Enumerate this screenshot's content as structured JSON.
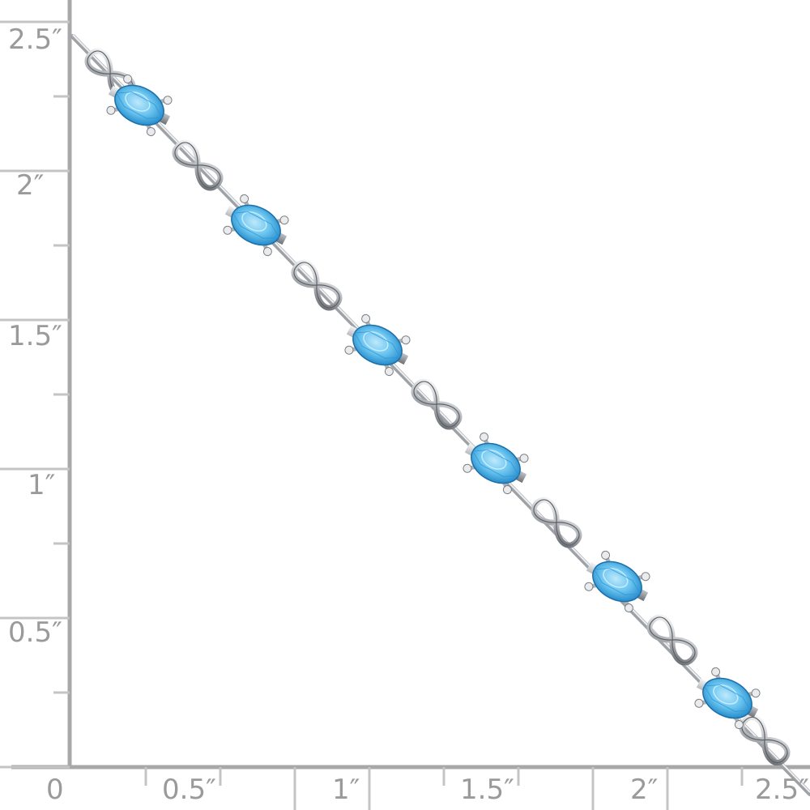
{
  "ruler": {
    "unit": "inch",
    "color": "#a8a8a8",
    "vertical_labels": [
      "2.5″",
      "2″",
      "1.5″",
      "1″",
      "0.5″"
    ],
    "horizontal_labels": [
      "0",
      "0.5″",
      "1″",
      "1.5″",
      "2″",
      "2.5″"
    ]
  },
  "product": {
    "type": "bracelet",
    "metal_color": "#d8dadd",
    "stone_color": "#4fb3e8",
    "stone_count": 6
  }
}
